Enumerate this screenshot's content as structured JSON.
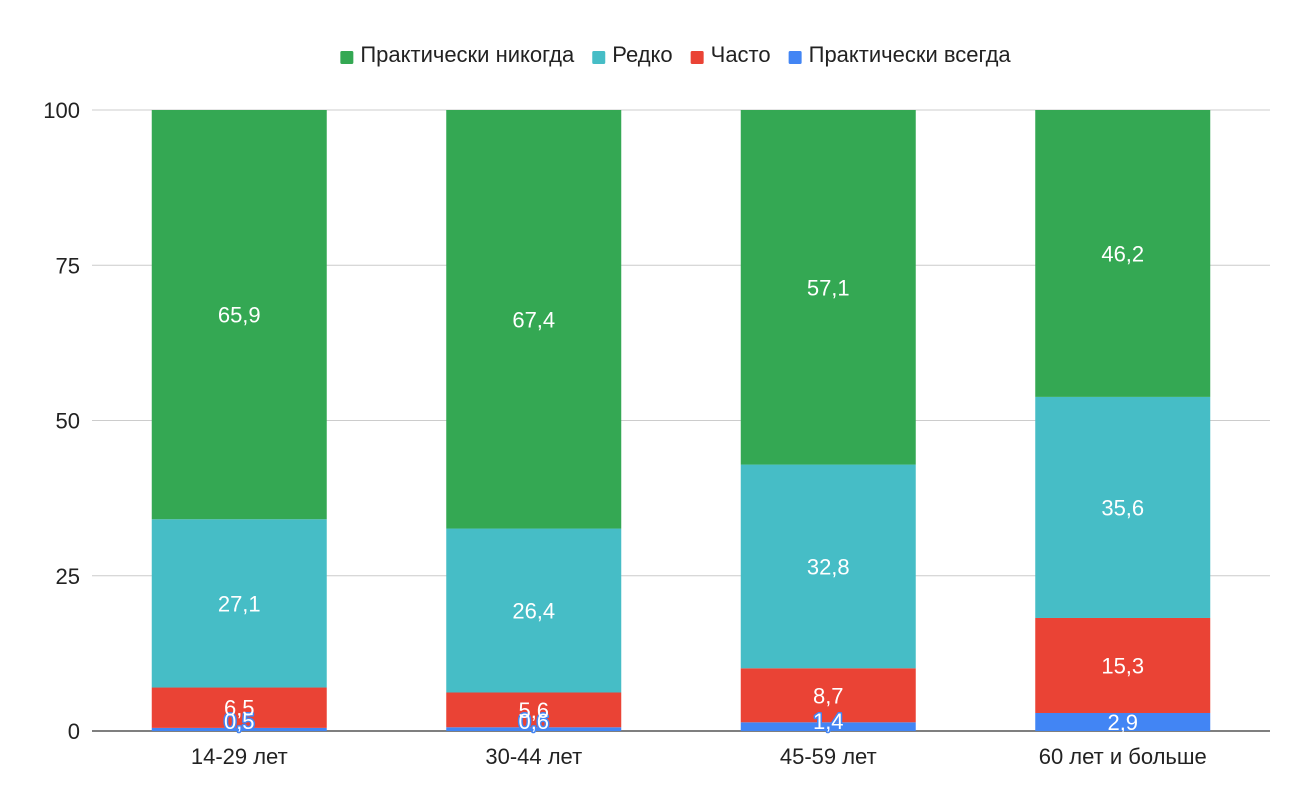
{
  "chart_data": {
    "type": "bar",
    "stacked": true,
    "categories": [
      "14-29 лет",
      "30-44 лет",
      "45-59 лет",
      "60 лет и больше"
    ],
    "series": [
      {
        "name": "Практически всегда",
        "color": "#4285f4",
        "values": [
          0.5,
          0.6,
          1.4,
          2.9
        ],
        "labels": [
          "0,5",
          "0,6",
          "1,4",
          "2,9"
        ]
      },
      {
        "name": "Часто",
        "color": "#ea4335",
        "values": [
          6.5,
          5.6,
          8.7,
          15.3
        ],
        "labels": [
          "6,5",
          "5,6",
          "8,7",
          "15,3"
        ]
      },
      {
        "name": "Редко",
        "color": "#46bdc6",
        "values": [
          27.1,
          26.4,
          32.8,
          35.6
        ],
        "labels": [
          "27,1",
          "26,4",
          "32,8",
          "35,6"
        ]
      },
      {
        "name": "Практически никогда",
        "color": "#34a853",
        "values": [
          65.9,
          67.4,
          57.1,
          46.2
        ],
        "labels": [
          "65,9",
          "67,4",
          "57,1",
          "46,2"
        ]
      }
    ],
    "legend_order": [
      "Практически никогда",
      "Редко",
      "Часто",
      "Практически всегда"
    ],
    "legend_position": "top",
    "ylim": [
      0,
      100
    ],
    "yticks": [
      0,
      25,
      50,
      75,
      100
    ],
    "grid": true,
    "title": "",
    "xlabel": "",
    "ylabel": ""
  }
}
